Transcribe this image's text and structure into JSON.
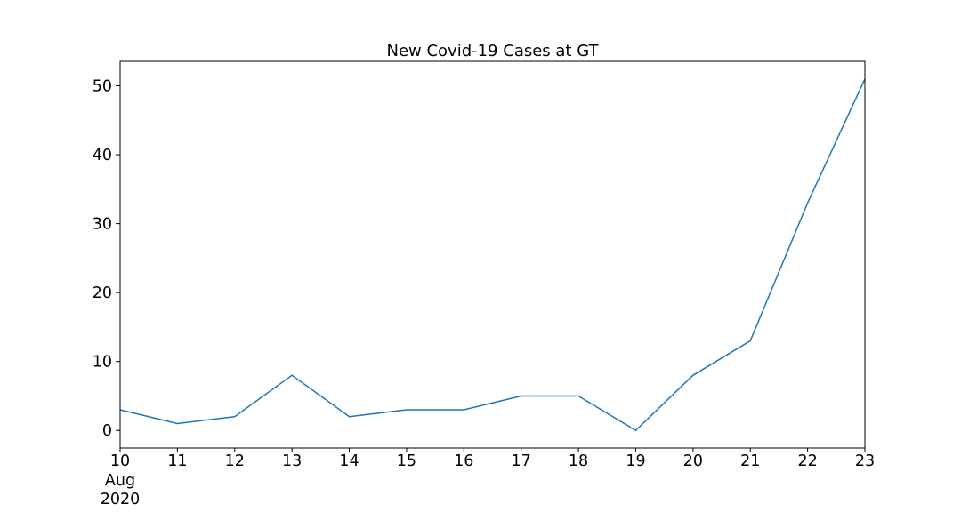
{
  "chart_data": {
    "type": "line",
    "title": "New Covid-19 Cases at GT",
    "xlabel": "",
    "ylabel": "",
    "x": [
      "2020-08-10",
      "2020-08-11",
      "2020-08-12",
      "2020-08-13",
      "2020-08-14",
      "2020-08-15",
      "2020-08-16",
      "2020-08-17",
      "2020-08-18",
      "2020-08-19",
      "2020-08-20",
      "2020-08-21",
      "2020-08-22",
      "2020-08-23"
    ],
    "x_tick_labels": [
      "10",
      "11",
      "12",
      "13",
      "14",
      "15",
      "16",
      "17",
      "18",
      "19",
      "20",
      "21",
      "22",
      "23"
    ],
    "x_tick_sublabel": [
      "Aug",
      "2020"
    ],
    "series": [
      {
        "values": [
          3,
          1,
          2,
          8,
          2,
          3,
          3,
          5,
          5,
          0,
          8,
          13,
          33,
          51
        ]
      }
    ],
    "ylim": [
      -2.55,
      53.55
    ],
    "yticks": [
      0,
      10,
      20,
      30,
      40,
      50
    ],
    "grid": false,
    "line_color": "#1f77b4"
  }
}
